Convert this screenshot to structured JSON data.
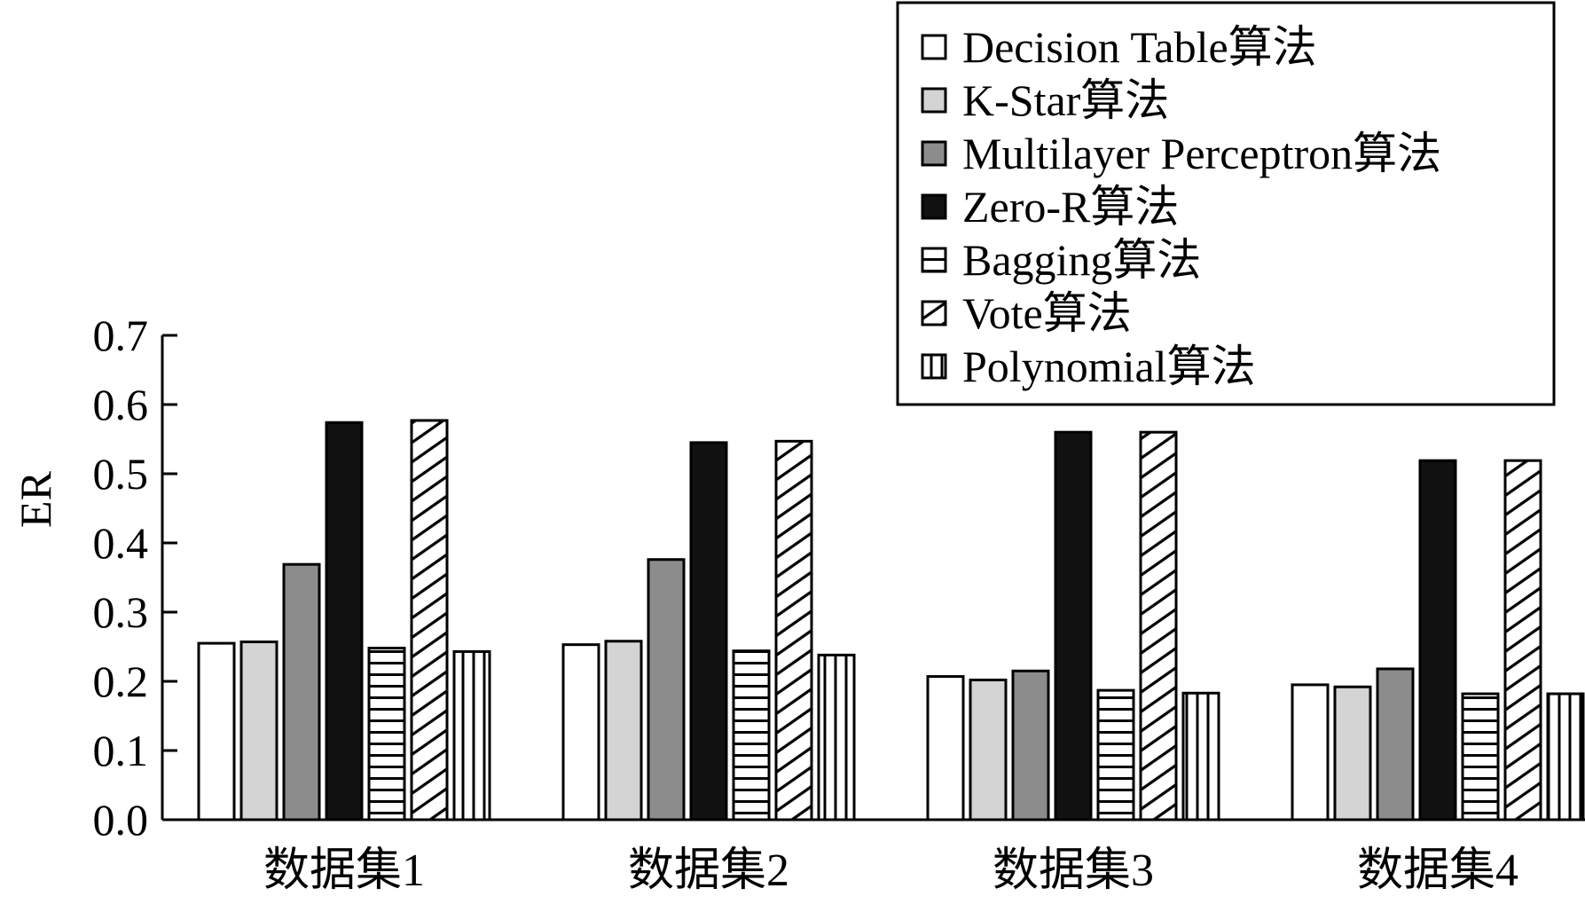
{
  "chart_data": {
    "type": "bar",
    "title": "",
    "xlabel": "",
    "ylabel": "ER",
    "ylim": [
      0,
      0.7
    ],
    "yticks": [
      "0.0",
      "0.1",
      "0.2",
      "0.3",
      "0.4",
      "0.5",
      "0.6",
      "0.7"
    ],
    "categories": [
      "数据集1",
      "数据集2",
      "数据集3",
      "数据集4"
    ],
    "grid": false,
    "legend_position": "top-right",
    "series": [
      {
        "name": "Decision Table算法",
        "values": [
          0.255,
          0.253,
          0.207,
          0.195
        ],
        "pattern": "white",
        "color": "#ffffff"
      },
      {
        "name": "K-Star算法",
        "values": [
          0.257,
          0.258,
          0.202,
          0.192
        ],
        "pattern": "light-gray",
        "color": "#d4d4d4"
      },
      {
        "name": "Multilayer Perceptron算法",
        "values": [
          0.369,
          0.376,
          0.215,
          0.218
        ],
        "pattern": "dark-gray",
        "color": "#8c8c8c"
      },
      {
        "name": "Zero-R算法",
        "values": [
          0.574,
          0.545,
          0.56,
          0.519
        ],
        "pattern": "black",
        "color": "#111111"
      },
      {
        "name": "Bagging算法",
        "values": [
          0.248,
          0.244,
          0.187,
          0.182
        ],
        "pattern": "horizontal-stripes",
        "color": "#000000"
      },
      {
        "name": "Vote算法",
        "values": [
          0.577,
          0.547,
          0.56,
          0.519
        ],
        "pattern": "diagonal-stripes",
        "color": "#000000"
      },
      {
        "name": "Polynomial算法",
        "values": [
          0.243,
          0.238,
          0.183,
          0.182
        ],
        "pattern": "vertical-stripes",
        "color": "#000000"
      }
    ]
  }
}
